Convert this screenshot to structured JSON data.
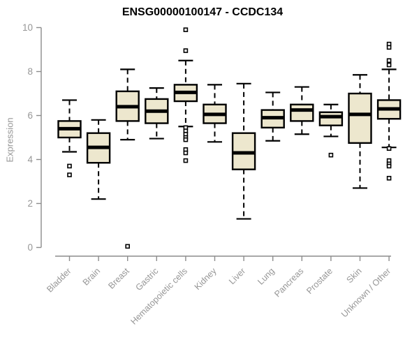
{
  "chart_data": {
    "type": "boxplot",
    "title": "ENSG00000100147 - CCDC134",
    "ylabel": "Expression",
    "xlabel": "",
    "ylim": [
      0,
      10
    ],
    "yticks": [
      0,
      2,
      4,
      6,
      8,
      10
    ],
    "grid": false,
    "legend": null,
    "colors": {
      "box_fill": "#EDE7CE",
      "box_stroke": "#000000",
      "median": "#000000",
      "whisker": "#000000",
      "outlier_stroke": "#000000",
      "outlier_fill": "#FFFFFF",
      "axis_line": "#8C8C8C",
      "axis_text": "#969696",
      "title_text": "#000000",
      "background": "#FFFFFF"
    },
    "categories": [
      "Bladder",
      "Brain",
      "Breast",
      "Gastric",
      "Hematopoietic cells",
      "Kidney",
      "Liver",
      "Lung",
      "Pancreas",
      "Prostate",
      "Skin",
      "Unknown / Other"
    ],
    "series": [
      {
        "category": "Bladder",
        "whisker_low": 4.35,
        "q1": 5.0,
        "median": 5.4,
        "q3": 5.75,
        "whisker_high": 6.7,
        "outliers": [
          3.7,
          3.3
        ]
      },
      {
        "category": "Brain",
        "whisker_low": 2.2,
        "q1": 3.85,
        "median": 4.55,
        "q3": 5.2,
        "whisker_high": 5.8,
        "outliers": []
      },
      {
        "category": "Breast",
        "whisker_low": 4.9,
        "q1": 5.75,
        "median": 6.4,
        "q3": 7.1,
        "whisker_high": 8.1,
        "outliers": [
          0.05
        ]
      },
      {
        "category": "Gastric",
        "whisker_low": 4.95,
        "q1": 5.65,
        "median": 6.2,
        "q3": 6.75,
        "whisker_high": 7.25,
        "outliers": []
      },
      {
        "category": "Hematopoietic cells",
        "whisker_low": 5.5,
        "q1": 6.65,
        "median": 7.05,
        "q3": 7.4,
        "whisker_high": 8.5,
        "outliers": [
          9.9,
          8.95,
          5.45,
          5.3,
          5.15,
          5.0,
          4.9,
          4.45,
          4.3,
          3.95
        ]
      },
      {
        "category": "Kidney",
        "whisker_low": 4.8,
        "q1": 5.65,
        "median": 6.05,
        "q3": 6.5,
        "whisker_high": 7.4,
        "outliers": []
      },
      {
        "category": "Liver",
        "whisker_low": 1.3,
        "q1": 3.55,
        "median": 4.3,
        "q3": 5.2,
        "whisker_high": 7.45,
        "outliers": []
      },
      {
        "category": "Lung",
        "whisker_low": 4.85,
        "q1": 5.45,
        "median": 5.9,
        "q3": 6.25,
        "whisker_high": 7.05,
        "outliers": []
      },
      {
        "category": "Pancreas",
        "whisker_low": 5.15,
        "q1": 5.75,
        "median": 6.25,
        "q3": 6.5,
        "whisker_high": 7.3,
        "outliers": []
      },
      {
        "category": "Prostate",
        "whisker_low": 5.05,
        "q1": 5.55,
        "median": 5.95,
        "q3": 6.15,
        "whisker_high": 6.5,
        "outliers": [
          4.2
        ]
      },
      {
        "category": "Skin",
        "whisker_low": 2.7,
        "q1": 4.75,
        "median": 6.05,
        "q3": 7.0,
        "whisker_high": 7.85,
        "outliers": []
      },
      {
        "category": "Unknown / Other",
        "whisker_low": 4.55,
        "q1": 5.85,
        "median": 6.3,
        "q3": 6.7,
        "whisker_high": 8.1,
        "outliers": [
          9.25,
          9.1,
          8.5,
          8.3,
          4.5,
          3.95,
          3.8,
          3.7,
          3.15
        ]
      }
    ]
  }
}
